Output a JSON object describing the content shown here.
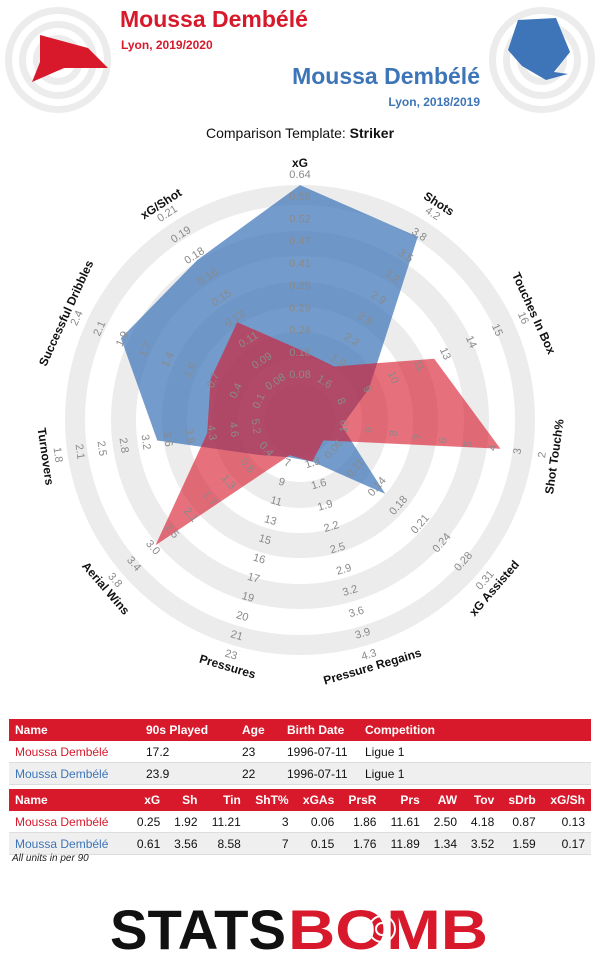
{
  "header": {
    "player1": {
      "name": "Moussa Dembélé",
      "subtitle": "Lyon, 2019/2020"
    },
    "player2": {
      "name": "Moussa Dembélé",
      "subtitle": "Lyon, 2018/2019"
    },
    "template_prefix": "Comparison Template: ",
    "template_name": "Striker"
  },
  "colors": {
    "player1": "#d7192b",
    "player2": "#3d75b8",
    "ring_light": "#ececec",
    "ring_white": "#ffffff"
  },
  "chart_data": {
    "type": "radar",
    "axes": [
      {
        "label": "xG",
        "ticks": [
          "0.08",
          "0.16",
          "0.24",
          "0.29",
          "0.35",
          "0.41",
          "0.47",
          "0.52",
          "0.58",
          "0.64"
        ]
      },
      {
        "label": "Shots",
        "ticks": [
          "1.6",
          "1.9",
          "2.2",
          "2.5",
          "2.9",
          "3.2",
          "3.5",
          "3.8",
          "4.2"
        ]
      },
      {
        "label": "Touches In Box",
        "ticks": [
          "8",
          "9",
          "10",
          "11",
          "13",
          "14",
          "15",
          "16"
        ]
      },
      {
        "label": "Shot Touch%",
        "ticks": [
          "10",
          "9",
          "8",
          "7",
          "6",
          "5",
          "4",
          "3",
          "2"
        ]
      },
      {
        "label": "xG Assisted",
        "ticks": [
          "0.06",
          "0.11",
          "0.14",
          "0.18",
          "0.21",
          "0.24",
          "0.28",
          "0.31"
        ]
      },
      {
        "label": "Pressure Regains",
        "ticks": [
          "1.3",
          "1.6",
          "1.9",
          "2.2",
          "2.5",
          "2.9",
          "3.2",
          "3.6",
          "3.9",
          "4.3"
        ]
      },
      {
        "label": "Pressures",
        "ticks": [
          "7",
          "9",
          "11",
          "13",
          "15",
          "16",
          "17",
          "19",
          "20",
          "21",
          "23"
        ]
      },
      {
        "label": "Aerial Wins",
        "ticks": [
          "0.4",
          "0.8",
          "1.3",
          "1.7",
          "2.1",
          "2.5",
          "3.0",
          "3.4",
          "3.8"
        ]
      },
      {
        "label": "Turnovers",
        "ticks": [
          "5.2",
          "4.6",
          "4.3",
          "3.9",
          "3.6",
          "3.2",
          "2.8",
          "2.5",
          "2.1",
          "1.8"
        ]
      },
      {
        "label": "Successful Dribbles",
        "ticks": [
          "0.1",
          "0.4",
          "0.7",
          "1.0",
          "1.4",
          "1.7",
          "1.9",
          "2.1",
          "2.4"
        ]
      },
      {
        "label": "xG/Shot",
        "ticks": [
          "0.08",
          "0.09",
          "0.11",
          "0.13",
          "0.15",
          "0.16",
          "0.18",
          "0.19",
          "0.21"
        ]
      }
    ],
    "series": [
      {
        "name": "Moussa Dembélé",
        "season": "Lyon, 2018/2019",
        "color": "#3d75b8",
        "fraction_of_range": [
          0.955,
          0.879,
          0.245,
          0.095,
          0.41,
          0.1,
          0.08,
          0.145,
          0.55,
          0.785,
          0.755
        ]
      },
      {
        "name": "Moussa Dembélé",
        "season": "Lyon, 2019/2020",
        "color": "#d7192b",
        "fraction_of_range": [
          0.22,
          0.19,
          0.565,
          0.81,
          0.045,
          0.1,
          0.07,
          0.76,
          0.325,
          0.345,
          0.425
        ]
      }
    ]
  },
  "table1": {
    "headers": [
      "Name",
      "90s Played",
      "Age",
      "Birth Date",
      "Competition"
    ],
    "rows": [
      [
        "Moussa Dembélé",
        "17.2",
        "23",
        "1996-07-11",
        "Ligue 1"
      ],
      [
        "Moussa Dembélé",
        "23.9",
        "22",
        "1996-07-11",
        "Ligue 1"
      ]
    ]
  },
  "table2": {
    "headers": [
      "Name",
      "xG",
      "Sh",
      "Tin",
      "ShT%",
      "xGAs",
      "PrsR",
      "Prs",
      "AW",
      "Tov",
      "sDrb",
      "xG/Sh"
    ],
    "rows": [
      [
        "Moussa Dembélé",
        "0.25",
        "1.92",
        "11.21",
        "3",
        "0.06",
        "1.86",
        "11.61",
        "2.50",
        "4.18",
        "0.87",
        "0.13"
      ],
      [
        "Moussa Dembélé",
        "0.61",
        "3.56",
        "8.58",
        "7",
        "0.15",
        "1.76",
        "11.89",
        "1.34",
        "3.52",
        "1.59",
        "0.17"
      ]
    ]
  },
  "footnote": "All units in per 90",
  "logo": {
    "part1": "STATS",
    "part2": "BOMB"
  }
}
